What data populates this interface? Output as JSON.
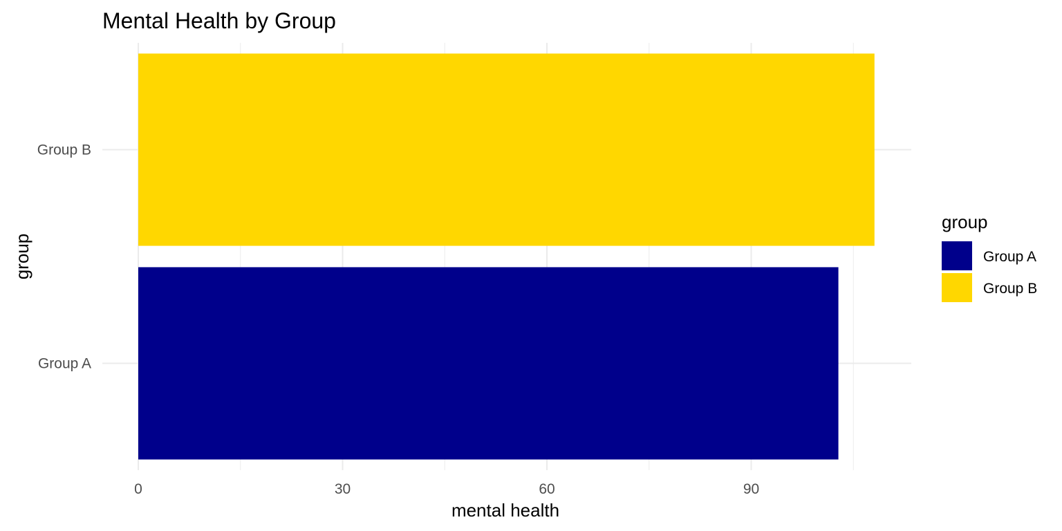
{
  "chart_data": {
    "type": "bar",
    "orientation": "horizontal",
    "title": "Mental Health by Group",
    "xlabel": "mental health",
    "ylabel": "group",
    "categories": [
      "Group A",
      "Group B"
    ],
    "values": [
      102.8,
      108.1
    ],
    "colors": [
      "#00008B",
      "#FFD700"
    ],
    "xlim": [
      0,
      113
    ],
    "xticks": [
      0,
      30,
      60,
      90
    ],
    "x_tick_labels": [
      "0",
      "30",
      "60",
      "90"
    ],
    "grid": true,
    "legend": {
      "title": "group",
      "position": "right",
      "entries": [
        {
          "label": "Group A",
          "color": "#00008B"
        },
        {
          "label": "Group B",
          "color": "#FFD700"
        }
      ]
    }
  }
}
